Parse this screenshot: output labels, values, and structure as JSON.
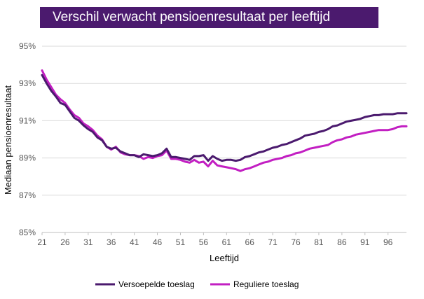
{
  "chart_data": {
    "type": "line",
    "title": "Verschil verwacht pensioenresultaat per leeftijd",
    "xlabel": "Leeftijd",
    "ylabel": "Mediaan pensioenresultaat",
    "xlim": [
      21,
      100
    ],
    "ylim": [
      85,
      95
    ],
    "x_ticks": [
      21,
      26,
      31,
      36,
      41,
      46,
      51,
      56,
      61,
      66,
      71,
      76,
      81,
      86,
      91,
      96
    ],
    "y_ticks": [
      85,
      87,
      89,
      91,
      93,
      95
    ],
    "y_tick_labels": [
      "85%",
      "87%",
      "89%",
      "91%",
      "93%",
      "95%"
    ],
    "grid": "horizontal",
    "legend_position": "bottom",
    "series": [
      {
        "name": "Versoepelde toeslag",
        "color": "#4b1a6e",
        "points": [
          [
            21,
            93.45
          ],
          [
            22,
            93.0
          ],
          [
            23,
            92.6
          ],
          [
            24,
            92.3
          ],
          [
            25,
            91.95
          ],
          [
            26,
            91.85
          ],
          [
            27,
            91.5
          ],
          [
            28,
            91.15
          ],
          [
            29,
            91.0
          ],
          [
            30,
            90.75
          ],
          [
            31,
            90.55
          ],
          [
            32,
            90.4
          ],
          [
            33,
            90.1
          ],
          [
            34,
            89.95
          ],
          [
            35,
            89.6
          ],
          [
            36,
            89.5
          ],
          [
            37,
            89.55
          ],
          [
            38,
            89.35
          ],
          [
            39,
            89.25
          ],
          [
            40,
            89.15
          ],
          [
            41,
            89.15
          ],
          [
            42,
            89.05
          ],
          [
            43,
            89.2
          ],
          [
            44,
            89.15
          ],
          [
            45,
            89.1
          ],
          [
            46,
            89.15
          ],
          [
            47,
            89.25
          ],
          [
            48,
            89.5
          ],
          [
            49,
            89.05
          ],
          [
            50,
            89.05
          ],
          [
            51,
            89.0
          ],
          [
            52,
            88.95
          ],
          [
            53,
            88.9
          ],
          [
            54,
            89.1
          ],
          [
            55,
            89.1
          ],
          [
            56,
            89.15
          ],
          [
            57,
            88.85
          ],
          [
            58,
            89.1
          ],
          [
            59,
            88.95
          ],
          [
            60,
            88.85
          ],
          [
            61,
            88.9
          ],
          [
            62,
            88.9
          ],
          [
            63,
            88.85
          ],
          [
            64,
            88.9
          ],
          [
            65,
            89.05
          ],
          [
            66,
            89.1
          ],
          [
            67,
            89.2
          ],
          [
            68,
            89.3
          ],
          [
            69,
            89.35
          ],
          [
            70,
            89.45
          ],
          [
            71,
            89.55
          ],
          [
            72,
            89.6
          ],
          [
            73,
            89.7
          ],
          [
            74,
            89.75
          ],
          [
            75,
            89.85
          ],
          [
            76,
            89.95
          ],
          [
            77,
            90.05
          ],
          [
            78,
            90.2
          ],
          [
            79,
            90.25
          ],
          [
            80,
            90.3
          ],
          [
            81,
            90.4
          ],
          [
            82,
            90.45
          ],
          [
            83,
            90.55
          ],
          [
            84,
            90.7
          ],
          [
            85,
            90.75
          ],
          [
            86,
            90.85
          ],
          [
            87,
            90.95
          ],
          [
            88,
            91.0
          ],
          [
            89,
            91.05
          ],
          [
            90,
            91.1
          ],
          [
            91,
            91.2
          ],
          [
            92,
            91.25
          ],
          [
            93,
            91.3
          ],
          [
            94,
            91.3
          ],
          [
            95,
            91.35
          ],
          [
            96,
            91.35
          ],
          [
            97,
            91.35
          ],
          [
            98,
            91.4
          ],
          [
            99,
            91.4
          ],
          [
            100,
            91.4
          ]
        ]
      },
      {
        "name": "Reguliere toeslag",
        "color": "#c21fc2",
        "points": [
          [
            21,
            93.7
          ],
          [
            22,
            93.2
          ],
          [
            23,
            92.8
          ],
          [
            24,
            92.4
          ],
          [
            25,
            92.15
          ],
          [
            26,
            91.95
          ],
          [
            27,
            91.6
          ],
          [
            28,
            91.3
          ],
          [
            29,
            91.15
          ],
          [
            30,
            90.85
          ],
          [
            31,
            90.7
          ],
          [
            32,
            90.5
          ],
          [
            33,
            90.2
          ],
          [
            34,
            90.0
          ],
          [
            35,
            89.6
          ],
          [
            36,
            89.45
          ],
          [
            37,
            89.6
          ],
          [
            38,
            89.3
          ],
          [
            39,
            89.2
          ],
          [
            40,
            89.15
          ],
          [
            41,
            89.15
          ],
          [
            42,
            89.1
          ],
          [
            43,
            88.95
          ],
          [
            44,
            89.05
          ],
          [
            45,
            89.0
          ],
          [
            46,
            89.1
          ],
          [
            47,
            89.15
          ],
          [
            48,
            89.4
          ],
          [
            49,
            88.95
          ],
          [
            50,
            88.95
          ],
          [
            51,
            88.9
          ],
          [
            52,
            88.8
          ],
          [
            53,
            88.75
          ],
          [
            54,
            88.9
          ],
          [
            55,
            88.75
          ],
          [
            56,
            88.8
          ],
          [
            57,
            88.55
          ],
          [
            58,
            88.85
          ],
          [
            59,
            88.6
          ],
          [
            60,
            88.55
          ],
          [
            61,
            88.5
          ],
          [
            62,
            88.45
          ],
          [
            63,
            88.4
          ],
          [
            64,
            88.3
          ],
          [
            65,
            88.4
          ],
          [
            66,
            88.45
          ],
          [
            67,
            88.55
          ],
          [
            68,
            88.65
          ],
          [
            69,
            88.75
          ],
          [
            70,
            88.8
          ],
          [
            71,
            88.9
          ],
          [
            72,
            88.95
          ],
          [
            73,
            89.0
          ],
          [
            74,
            89.1
          ],
          [
            75,
            89.15
          ],
          [
            76,
            89.25
          ],
          [
            77,
            89.3
          ],
          [
            78,
            89.4
          ],
          [
            79,
            89.5
          ],
          [
            80,
            89.55
          ],
          [
            81,
            89.6
          ],
          [
            82,
            89.65
          ],
          [
            83,
            89.7
          ],
          [
            84,
            89.85
          ],
          [
            85,
            89.95
          ],
          [
            86,
            90.0
          ],
          [
            87,
            90.1
          ],
          [
            88,
            90.15
          ],
          [
            89,
            90.25
          ],
          [
            90,
            90.3
          ],
          [
            91,
            90.35
          ],
          [
            92,
            90.4
          ],
          [
            93,
            90.45
          ],
          [
            94,
            90.5
          ],
          [
            95,
            90.5
          ],
          [
            96,
            90.5
          ],
          [
            97,
            90.55
          ],
          [
            98,
            90.65
          ],
          [
            99,
            90.7
          ],
          [
            100,
            90.7
          ]
        ]
      }
    ]
  }
}
